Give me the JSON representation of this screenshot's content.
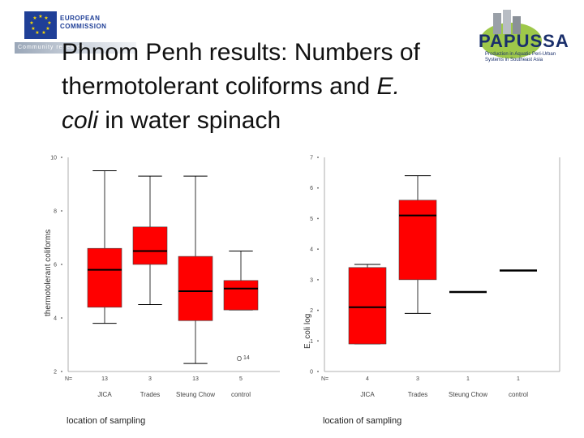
{
  "header": {
    "title_line1": "Phnom Penh results: Numbers of",
    "title_line2": "thermotolerant coliforms and ",
    "title_italic_e": "E.",
    "title_italic_coli": "coli",
    "title_line3_rest": " in water spinach"
  },
  "logos": {
    "eu_line1": "EUROPEAN",
    "eu_line2": "COMMISSION",
    "eu_band": "Community research",
    "papussa_name": "PAPUSSA",
    "papussa_sub": "Production in Aquatic Peri-Urban Systems in Southeast Asia"
  },
  "colors": {
    "box_fill": "#ff0000",
    "median": "#000000",
    "whisker": "#000000"
  },
  "chart_data": [
    {
      "type": "boxplot",
      "ylabel": "thermotolerant coliforms",
      "xlabel": "location of sampling",
      "ylim": [
        2,
        10
      ],
      "yticks": [
        "2",
        "4",
        "6",
        "8",
        "10"
      ],
      "n_label": "N=",
      "categories": [
        "JICA",
        "Trades",
        "Steung Chow",
        "control"
      ],
      "n": [
        "13",
        "3",
        "13",
        "5"
      ],
      "boxes": [
        {
          "whisker_low": 3.8,
          "q1": 4.4,
          "median": 5.8,
          "q3": 6.6,
          "whisker_high": 9.5
        },
        {
          "whisker_low": 4.5,
          "q1": 6.0,
          "median": 6.5,
          "q3": 7.4,
          "whisker_high": 9.3
        },
        {
          "whisker_low": 2.3,
          "q1": 3.9,
          "median": 5.0,
          "q3": 6.3,
          "whisker_high": 9.3
        },
        {
          "whisker_low": 4.3,
          "q1": 4.3,
          "median": 5.1,
          "q3": 5.4,
          "whisker_high": 6.5
        }
      ],
      "outlier_label": "O",
      "outlier_num": "14",
      "outlier": {
        "category": "Steung Chow",
        "y": 2.4
      }
    },
    {
      "type": "boxplot",
      "ylabel": "E. coli log",
      "xlabel": "location of sampling",
      "ylim": [
        0,
        7
      ],
      "yticks": [
        "0",
        "1",
        "2",
        "3",
        "4",
        "5",
        "6",
        "7"
      ],
      "n_label": "N=",
      "categories": [
        "JICA",
        "Trades",
        "Steung Chow",
        "control"
      ],
      "n": [
        "4",
        "3",
        "1",
        "1"
      ],
      "boxes": [
        {
          "whisker_low": 0.9,
          "q1": 0.9,
          "median": 2.1,
          "q3": 3.4,
          "whisker_high": 3.5
        },
        {
          "whisker_low": 1.9,
          "q1": 3.0,
          "median": 5.1,
          "q3": 5.6,
          "whisker_high": 6.4
        },
        {
          "whisker_low": 2.6,
          "q1": 2.6,
          "median": 2.6,
          "q3": 2.6,
          "whisker_high": 2.6
        },
        {
          "whisker_low": 3.3,
          "q1": 3.3,
          "median": 3.3,
          "q3": 3.3,
          "whisker_high": 3.3
        }
      ]
    }
  ]
}
